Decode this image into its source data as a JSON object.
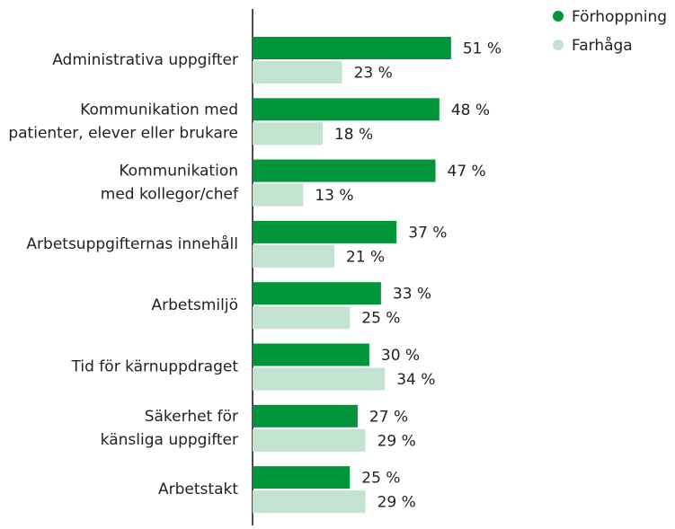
{
  "chart_data": {
    "type": "hbar",
    "categories": [
      "Administrativa uppgifter",
      "Kommunikation med\npatienter, elever eller brukare",
      "Kommunikation\nmed kollegor/chef",
      "Arbetsuppgifternas innehåll",
      "Arbetsmiljö",
      "Tid för kärnuppdraget",
      "Säkerhet för\nkänsliga uppgifter",
      "Arbetstakt"
    ],
    "series": [
      {
        "name": "Förhoppning",
        "color": "#00953a",
        "values": [
          51,
          48,
          47,
          37,
          33,
          30,
          27,
          25
        ],
        "value_labels": [
          "51 %",
          "48 %",
          "47 %",
          "37 %",
          "33 %",
          "30 %",
          "27 %",
          "25 %"
        ]
      },
      {
        "name": "Farhåga",
        "color": "#c2e3cf",
        "values": [
          23,
          18,
          13,
          21,
          25,
          34,
          29,
          29
        ],
        "value_labels": [
          "23 %",
          "18 %",
          "13 %",
          "21 %",
          "25 %",
          "34 %",
          "29 %",
          "29 %"
        ]
      }
    ],
    "xlim": [
      0,
      100
    ],
    "legend": "top-right"
  }
}
